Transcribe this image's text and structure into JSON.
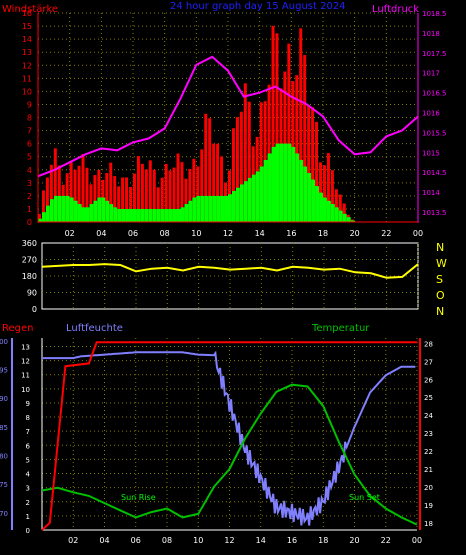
{
  "header": {
    "title": "24 hour graph day  15 August 2024",
    "wind_label": "Windstärke",
    "pressure_label": "Luftdruck"
  },
  "lower_header": {
    "rain_label": "Regen",
    "humidity_label": "Luftfeuchte",
    "temperature_label": "Temperatur"
  },
  "annotations": {
    "sunrise": "Sun Rise",
    "sunset": "Sun Set"
  },
  "compass": [
    "N",
    "W",
    "S",
    "O",
    "N"
  ],
  "colors": {
    "wind": "#ff0000",
    "gust": "#00ff00",
    "pressure": "#ff00ff",
    "winddir": "#ffff00",
    "rain": "#ff0000",
    "humidity": "#8080ff",
    "temperature": "#00c000",
    "title": "#2020ff",
    "grid": "#808000",
    "axis": "#ffffff"
  },
  "chart_data": [
    {
      "type": "bar+line",
      "panel": "wind-pressure",
      "x_ticks": [
        "02",
        "04",
        "06",
        "08",
        "10",
        "12",
        "14",
        "16",
        "18",
        "20",
        "22",
        "00"
      ],
      "xlim": [
        0,
        24
      ],
      "wind_ticks": [
        "0",
        "1",
        "2",
        "3",
        "4",
        "5",
        "6",
        "7",
        "8",
        "9",
        "10",
        "11",
        "12",
        "13",
        "14",
        "15",
        "16"
      ],
      "wind_ylim": [
        0,
        16
      ],
      "pressure_ticks": [
        "1013.5",
        "1014",
        "1014.5",
        "1015",
        "1015.5",
        "1016",
        "1016.5",
        "1017",
        "1017.5",
        "1018",
        "1018.5"
      ],
      "pressure_ylim": [
        1013.25,
        1018.5
      ],
      "pressure": [
        [
          0,
          1014.4
        ],
        [
          1,
          1014.55
        ],
        [
          2,
          1014.75
        ],
        [
          3,
          1014.95
        ],
        [
          4,
          1015.1
        ],
        [
          5,
          1015.05
        ],
        [
          6,
          1015.25
        ],
        [
          7,
          1015.35
        ],
        [
          8,
          1015.6
        ],
        [
          9,
          1016.35
        ],
        [
          10,
          1017.2
        ],
        [
          11,
          1017.4
        ],
        [
          12,
          1017.05
        ],
        [
          13,
          1016.4
        ],
        [
          14,
          1016.5
        ],
        [
          15,
          1016.65
        ],
        [
          16,
          1016.4
        ],
        [
          17,
          1016.2
        ],
        [
          18,
          1015.9
        ],
        [
          19,
          1015.3
        ],
        [
          20,
          1014.95
        ],
        [
          21,
          1015.0
        ],
        [
          22,
          1015.4
        ],
        [
          23,
          1015.55
        ],
        [
          24,
          1015.9
        ]
      ],
      "wind": [
        [
          0,
          0
        ],
        [
          1,
          5
        ],
        [
          2,
          4
        ],
        [
          3,
          4
        ],
        [
          4,
          4
        ],
        [
          5,
          3
        ],
        [
          6,
          4
        ],
        [
          7,
          4
        ],
        [
          8,
          4
        ],
        [
          9,
          4
        ],
        [
          10,
          5
        ],
        [
          11,
          7
        ],
        [
          12,
          4
        ],
        [
          13,
          9
        ],
        [
          14,
          8
        ],
        [
          15,
          12
        ],
        [
          16,
          14
        ],
        [
          17,
          10
        ],
        [
          18,
          6
        ],
        [
          19,
          2
        ],
        [
          20,
          0
        ],
        [
          21,
          0
        ],
        [
          22,
          0
        ],
        [
          23,
          0
        ],
        [
          24,
          0
        ]
      ],
      "gust": [
        [
          0,
          0
        ],
        [
          1,
          2
        ],
        [
          2,
          2
        ],
        [
          3,
          1
        ],
        [
          4,
          2
        ],
        [
          5,
          1
        ],
        [
          6,
          1
        ],
        [
          7,
          1
        ],
        [
          8,
          1
        ],
        [
          9,
          1
        ],
        [
          10,
          2
        ],
        [
          11,
          2
        ],
        [
          12,
          2
        ],
        [
          13,
          3
        ],
        [
          14,
          4
        ],
        [
          15,
          6
        ],
        [
          16,
          6
        ],
        [
          17,
          4
        ],
        [
          18,
          2
        ],
        [
          19,
          1
        ],
        [
          20,
          0
        ],
        [
          21,
          0
        ],
        [
          22,
          0
        ],
        [
          23,
          0
        ],
        [
          24,
          0
        ]
      ]
    },
    {
      "type": "line",
      "panel": "wind-direction",
      "y_ticks": [
        "0",
        "90",
        "180",
        "270",
        "360"
      ],
      "ylim": [
        0,
        360
      ],
      "direction": [
        [
          0,
          230
        ],
        [
          1,
          235
        ],
        [
          2,
          240
        ],
        [
          3,
          240
        ],
        [
          4,
          245
        ],
        [
          5,
          240
        ],
        [
          6,
          205
        ],
        [
          7,
          220
        ],
        [
          8,
          225
        ],
        [
          9,
          210
        ],
        [
          10,
          230
        ],
        [
          11,
          225
        ],
        [
          12,
          215
        ],
        [
          13,
          220
        ],
        [
          14,
          225
        ],
        [
          15,
          210
        ],
        [
          16,
          230
        ],
        [
          17,
          225
        ],
        [
          18,
          215
        ],
        [
          19,
          220
        ],
        [
          20,
          200
        ],
        [
          21,
          195
        ],
        [
          22,
          170
        ],
        [
          23,
          175
        ],
        [
          24,
          245
        ]
      ]
    },
    {
      "type": "line",
      "panel": "rain-humidity-temperature",
      "rain_ticks": [
        "0",
        "1",
        "2",
        "3",
        "4",
        "5",
        "6",
        "7",
        "8",
        "9",
        "10",
        "11",
        "12",
        "13"
      ],
      "rain_ylim": [
        0,
        13.6
      ],
      "humidity_ticks": [
        "70",
        "75",
        "80",
        "85",
        "90",
        "95",
        "100"
      ],
      "humidity_ylim": [
        67,
        100.5
      ],
      "temperature_ticks": [
        "18",
        "19",
        "20",
        "21",
        "22",
        "23",
        "24",
        "25",
        "26",
        "27",
        "28"
      ],
      "temperature_ylim": [
        17.6,
        28.3
      ],
      "rain": [
        [
          0,
          0
        ],
        [
          0.5,
          0.5
        ],
        [
          1.5,
          11.6
        ],
        [
          3,
          11.8
        ],
        [
          3.5,
          13.3
        ],
        [
          24,
          13.3
        ]
      ],
      "humidity": [
        [
          0,
          97
        ],
        [
          2,
          97
        ],
        [
          2.5,
          97.3
        ],
        [
          6,
          98
        ],
        [
          9,
          98
        ],
        [
          10,
          97.6
        ],
        [
          11,
          97.5
        ],
        [
          12,
          89
        ],
        [
          13,
          81
        ],
        [
          14,
          76
        ],
        [
          15,
          71
        ],
        [
          16,
          70
        ],
        [
          17,
          69
        ],
        [
          18,
          72
        ],
        [
          19,
          78
        ],
        [
          20,
          85
        ],
        [
          21,
          91
        ],
        [
          22,
          94
        ],
        [
          23,
          95.5
        ],
        [
          24,
          95.5
        ]
      ],
      "temperature": [
        [
          0,
          19.8
        ],
        [
          1,
          19.95
        ],
        [
          2,
          19.7
        ],
        [
          3,
          19.5
        ],
        [
          4,
          19.1
        ],
        [
          5,
          18.7
        ],
        [
          6,
          18.3
        ],
        [
          7,
          18.6
        ],
        [
          8,
          18.8
        ],
        [
          9,
          18.3
        ],
        [
          10,
          18.5
        ],
        [
          11,
          20.0
        ],
        [
          12,
          21.0
        ],
        [
          13,
          22.7
        ],
        [
          14,
          24.1
        ],
        [
          15,
          25.3
        ],
        [
          16,
          25.7
        ],
        [
          17,
          25.6
        ],
        [
          18,
          24.5
        ],
        [
          19,
          22.5
        ],
        [
          20,
          20.7
        ],
        [
          21,
          19.5
        ],
        [
          22,
          18.8
        ],
        [
          23,
          18.3
        ],
        [
          24,
          17.9
        ]
      ]
    }
  ]
}
